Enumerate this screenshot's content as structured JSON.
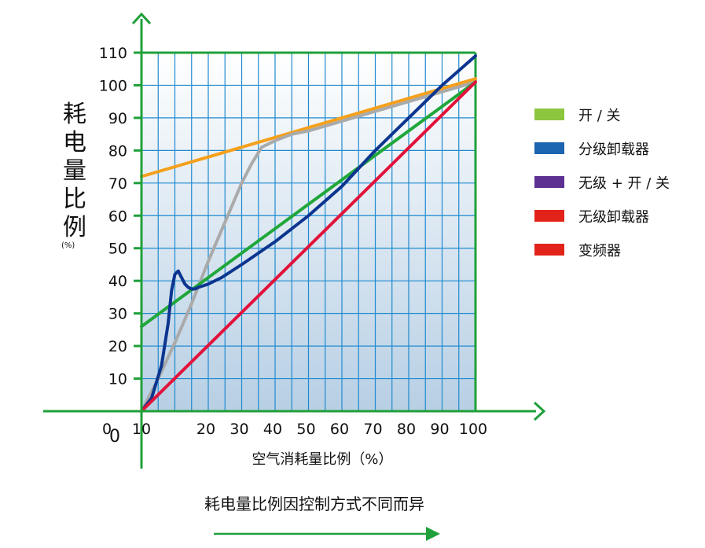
{
  "chart_data": {
    "type": "line",
    "ylabel": "耗电量比例",
    "yunit": "(%)",
    "xlabel": "空气消耗量比例（%）",
    "caption": "耗电量比例因控制方式不同而异",
    "origin_labels": [
      "0",
      "0"
    ],
    "x_ticks": [
      10,
      20,
      30,
      40,
      50,
      60,
      70,
      80,
      90,
      100
    ],
    "y_ticks": [
      10,
      20,
      30,
      40,
      50,
      60,
      70,
      80,
      90,
      100,
      110
    ],
    "xlim": [
      0,
      100
    ],
    "ylim": [
      0,
      110
    ],
    "grid": true,
    "legend_position": "right",
    "legend": [
      {
        "label": "开 / 关",
        "color": "#8cc63f"
      },
      {
        "label": "分级卸载器",
        "color": "#1a64b0"
      },
      {
        "label": "无级 + 开 / 关",
        "color": "#5c3192"
      },
      {
        "label": "无级卸载器",
        "color": "#e2231a"
      },
      {
        "label": "变频器",
        "color": "#e2231a"
      }
    ],
    "series": [
      {
        "color": "#f5a01c",
        "x": [
          0,
          100
        ],
        "y": [
          72,
          102
        ]
      },
      {
        "color": "#aaaaaa",
        "x": [
          0,
          5,
          10,
          15,
          20,
          25,
          30,
          33,
          36,
          38,
          40,
          45,
          50,
          60,
          70,
          80,
          90,
          100
        ],
        "y": [
          0,
          10,
          21,
          33,
          46,
          58,
          70,
          76,
          81,
          82,
          83,
          85,
          86,
          89,
          92,
          95,
          98,
          101
        ]
      },
      {
        "color": "#20a73a",
        "x": [
          0,
          100
        ],
        "y": [
          26,
          101
        ]
      },
      {
        "color": "#0c3590",
        "x": [
          0,
          3,
          6,
          8,
          9,
          10,
          11,
          12,
          13,
          14,
          15,
          16,
          17,
          20,
          24,
          30,
          40,
          50,
          60,
          70,
          80,
          90,
          100
        ],
        "y": [
          0,
          4,
          14,
          27,
          37,
          42,
          43,
          41,
          39,
          38,
          37.5,
          37.5,
          38,
          39,
          41,
          45,
          52,
          60,
          69,
          80,
          90,
          100,
          109
        ]
      },
      {
        "color": "#e2123a",
        "x": [
          0,
          100
        ],
        "y": [
          0,
          101
        ]
      }
    ]
  }
}
